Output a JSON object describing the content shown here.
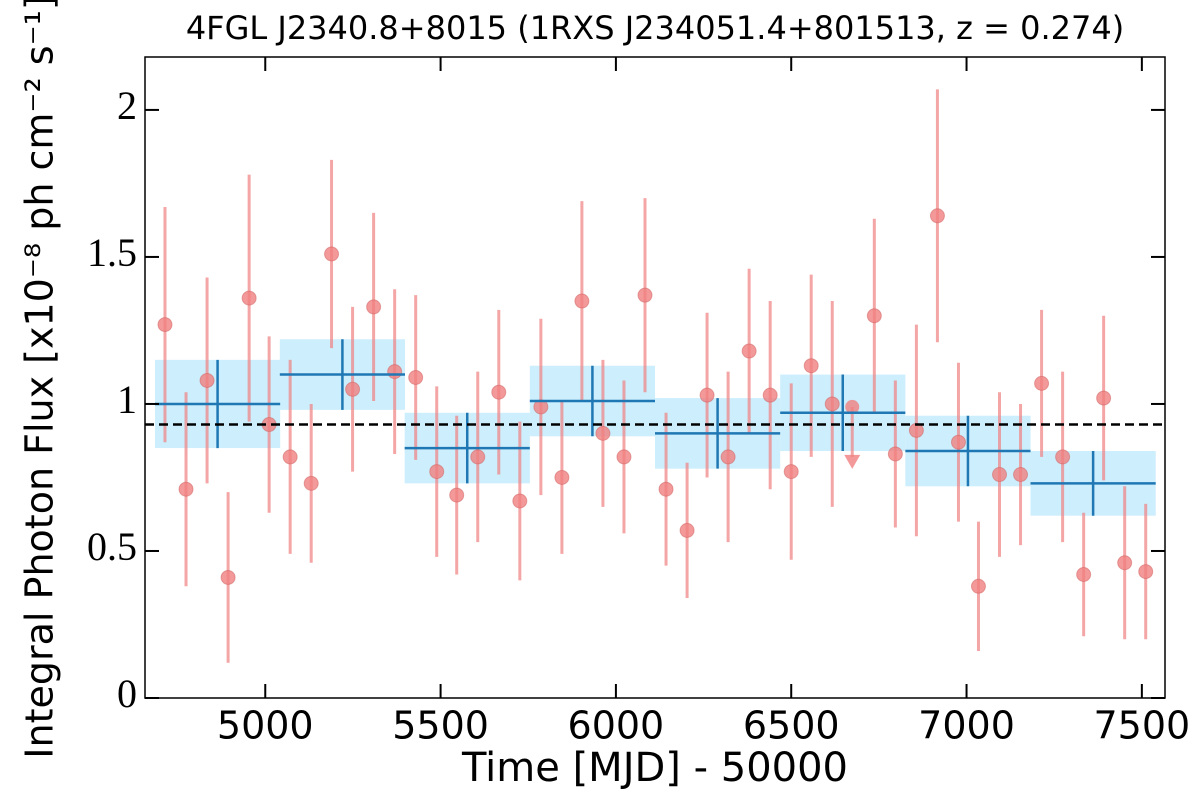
{
  "chart_data": {
    "type": "scatter",
    "title": "4FGL J2340.8+8015 (1RXS J234051.4+801513, z = 0.274)",
    "xlabel": "Time [MJD] - 50000",
    "ylabel": "Integral Photon Flux [x10⁻⁸ ph cm⁻² s⁻¹]",
    "xlim": [
      4657,
      7566
    ],
    "ylim": [
      0,
      2.18
    ],
    "xticks": [
      5000,
      5500,
      6000,
      6500,
      7000,
      7500
    ],
    "yticks": [
      0,
      0.5,
      1,
      1.5,
      2
    ],
    "series": [
      {
        "color": "#f08080",
        "x": [
          4714,
          4774,
          4834,
          4894,
          4954,
          5011,
          5071,
          5131,
          5189,
          5249,
          5309,
          5369,
          5429,
          5489,
          5546,
          5606,
          5666,
          5726,
          5786,
          5846,
          5903,
          5963,
          6023,
          6083,
          6143,
          6203,
          6260,
          6320,
          6380,
          6440,
          6500,
          6557,
          6617,
          6737,
          6797,
          6857,
          6917,
          6977,
          7034,
          7094,
          7154,
          7214,
          7274,
          7334,
          7391,
          7451,
          7511
        ],
        "values": [
          1.27,
          0.71,
          1.08,
          0.41,
          1.36,
          0.93,
          0.82,
          0.73,
          1.51,
          1.05,
          1.33,
          1.11,
          1.09,
          0.77,
          0.69,
          0.82,
          1.04,
          0.67,
          0.99,
          0.75,
          1.35,
          0.9,
          0.82,
          1.37,
          0.71,
          0.57,
          1.03,
          0.82,
          1.18,
          1.03,
          0.77,
          1.13,
          1.0,
          1.3,
          0.83,
          0.91,
          1.64,
          0.87,
          0.38,
          0.76,
          0.76,
          1.07,
          0.82,
          0.42,
          1.02,
          0.46,
          0.43
        ],
        "errors": [
          0.4,
          0.33,
          0.35,
          0.29,
          0.42,
          0.3,
          0.33,
          0.27,
          0.32,
          0.28,
          0.32,
          0.28,
          0.28,
          0.29,
          0.27,
          0.29,
          0.28,
          0.27,
          0.3,
          0.26,
          0.34,
          0.25,
          0.26,
          0.33,
          0.26,
          0.23,
          0.28,
          0.29,
          0.28,
          0.32,
          0.3,
          0.31,
          0.35,
          0.33,
          0.25,
          0.36,
          0.43,
          0.27,
          0.22,
          0.28,
          0.24,
          0.25,
          0.29,
          0.21,
          0.28,
          0.26,
          0.23
        ]
      },
      {
        "color": "#1f77b4",
        "band_color": "#cdeefc",
        "x": [
          4864,
          5220,
          5576,
          5933,
          6290,
          6647,
          7004,
          7361
        ],
        "xerr": [
          178.5,
          178.5,
          178.5,
          178.5,
          178.5,
          178.5,
          178.5,
          178.5
        ],
        "values": [
          1.0,
          1.1,
          0.85,
          1.01,
          0.9,
          0.97,
          0.84,
          0.73
        ],
        "errors": [
          0.15,
          0.12,
          0.12,
          0.12,
          0.12,
          0.13,
          0.12,
          0.11
        ]
      }
    ],
    "upper_limits": {
      "color": "#f08080",
      "x": [
        6674
      ],
      "values": [
        0.99
      ]
    },
    "hline": 0.93
  }
}
